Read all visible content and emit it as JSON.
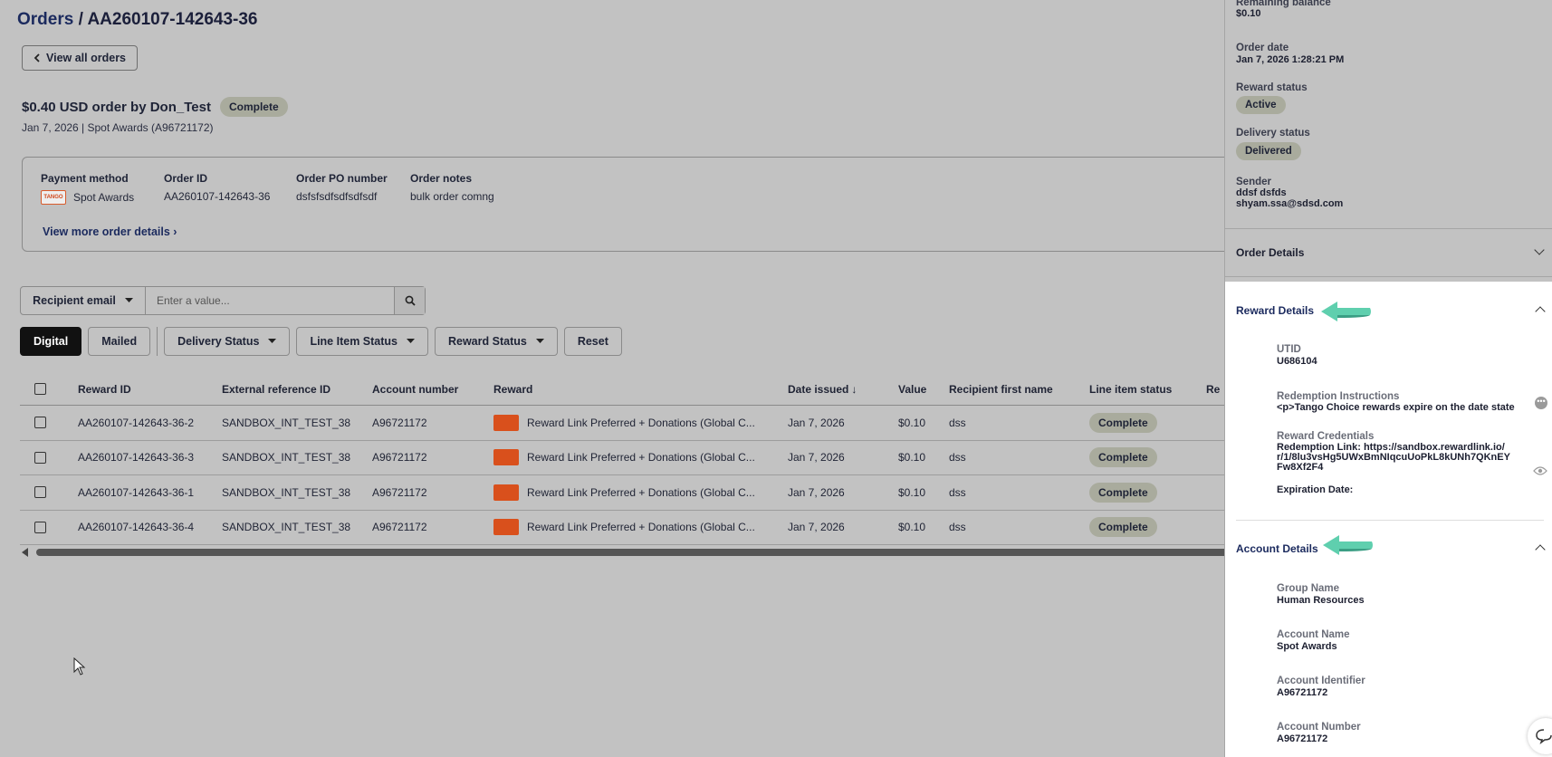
{
  "header": {
    "breadcrumb_root": "Orders",
    "breadcrumb_sep": " / ",
    "order_code": "AA260107-142643-36",
    "back_label": "View all orders"
  },
  "order": {
    "headline": "$0.40 USD order by Don_Test",
    "status": "Complete",
    "subline": "Jan 7, 2026 | Spot Awards (A96721172)"
  },
  "info": {
    "payment_label": "Payment method",
    "payment_logo": "TANGO",
    "payment_value": "Spot Awards",
    "order_id_label": "Order ID",
    "order_id_value": "AA260107-142643-36",
    "po_label": "Order PO number",
    "po_value": "dsfsfsdfsdfsdfsdf",
    "notes_label": "Order notes",
    "notes_value": "bulk order comng",
    "more_link": "View more order details"
  },
  "search": {
    "field_label": "Recipient email",
    "placeholder": "Enter a value..."
  },
  "filters": {
    "digital": "Digital",
    "mailed": "Mailed",
    "delivery_status": "Delivery Status",
    "line_item_status": "Line Item Status",
    "reward_status": "Reward Status",
    "reset": "Reset"
  },
  "table": {
    "columns": [
      "Reward ID",
      "External reference ID",
      "Account number",
      "Reward",
      "Date issued",
      "Value",
      "Recipient first name",
      "Line item status",
      "Re"
    ],
    "rows": [
      {
        "reward_id": "AA260107-142643-36-2",
        "ext_ref": "SANDBOX_INT_TEST_38",
        "account": "A96721172",
        "reward": "Reward Link Preferred + Donations (Global C...",
        "date": "Jan 7, 2026",
        "value": "$0.10",
        "first_name": "dss",
        "status": "Complete"
      },
      {
        "reward_id": "AA260107-142643-36-3",
        "ext_ref": "SANDBOX_INT_TEST_38",
        "account": "A96721172",
        "reward": "Reward Link Preferred + Donations (Global C...",
        "date": "Jan 7, 2026",
        "value": "$0.10",
        "first_name": "dss",
        "status": "Complete"
      },
      {
        "reward_id": "AA260107-142643-36-1",
        "ext_ref": "SANDBOX_INT_TEST_38",
        "account": "A96721172",
        "reward": "Reward Link Preferred + Donations (Global C...",
        "date": "Jan 7, 2026",
        "value": "$0.10",
        "first_name": "dss",
        "status": "Complete"
      },
      {
        "reward_id": "AA260107-142643-36-4",
        "ext_ref": "SANDBOX_INT_TEST_38",
        "account": "A96721172",
        "reward": "Reward Link Preferred + Donations (Global C...",
        "date": "Jan 7, 2026",
        "value": "$0.10",
        "first_name": "dss",
        "status": "Complete"
      }
    ]
  },
  "panel": {
    "remaining_label": "Remaining balance",
    "remaining_value": "$0.10",
    "order_date_label": "Order date",
    "order_date_value": "Jan 7, 2026 1:28:21 PM",
    "reward_status_label": "Reward status",
    "reward_status_value": "Active",
    "delivery_status_label": "Delivery status",
    "delivery_status_value": "Delivered",
    "sender_label": "Sender",
    "sender_name": "ddsf dsfds",
    "sender_email": "shyam.ssa@sdsd.com",
    "order_details_title": "Order Details",
    "reward_details_title": "Reward Details",
    "utid_label": "UTID",
    "utid_value": "U686104",
    "redemption_label": "Redemption Instructions",
    "redemption_value": "<p>Tango Choice rewards expire on the date state",
    "credentials_label": "Reward Credentials",
    "credentials_value": "Redemption Link: https://sandbox.rewardlink.io/r/1/8lu3vsHg5UWxBmNIqcuUoPkL8kUNh7QKnEYFw8Xf2F4",
    "expiration_label": "Expiration Date:",
    "account_details_title": "Account Details",
    "group_label": "Group Name",
    "group_value": "Human Resources",
    "account_name_label": "Account Name",
    "account_name_value": "Spot Awards",
    "account_id_label": "Account Identifier",
    "account_id_value": "A96721172",
    "account_number_label": "Account Number",
    "account_number_value": "A96721172"
  },
  "colors": {
    "accent_arrow": "#5fcfae",
    "status_pill": "#a9ab9d",
    "reward_thumb": "#d9501c",
    "link_navy": "#1b2a5e"
  }
}
